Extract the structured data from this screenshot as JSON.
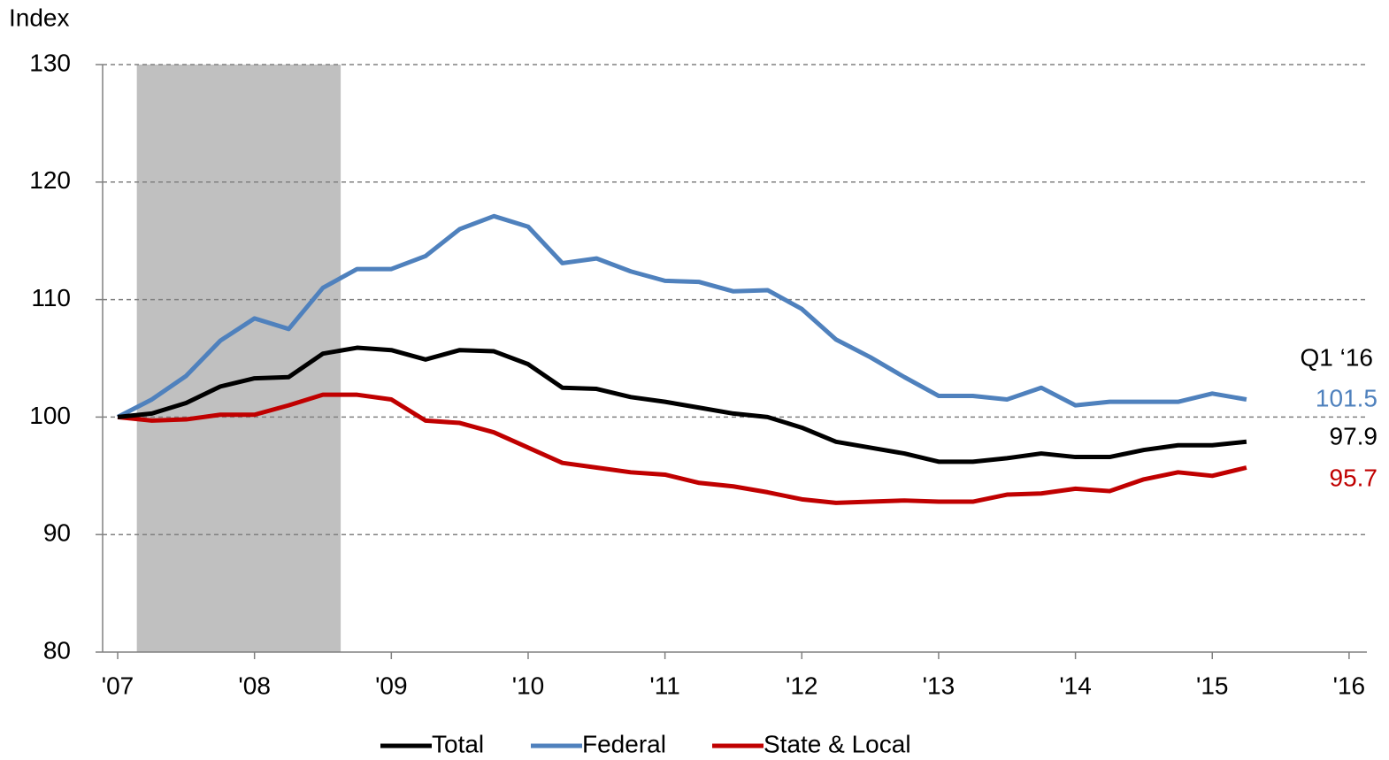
{
  "chart_data": {
    "type": "line",
    "ylabel": "Index",
    "annotation": "Q1 ‘16",
    "x": [
      2007,
      2007.25,
      2007.5,
      2007.75,
      2008,
      2008.25,
      2008.5,
      2008.75,
      2009,
      2009.25,
      2009.5,
      2009.75,
      2010,
      2010.25,
      2010.5,
      2010.75,
      2011,
      2011.25,
      2011.5,
      2011.75,
      2012,
      2012.25,
      2012.5,
      2012.75,
      2013,
      2013.25,
      2013.5,
      2013.75,
      2014,
      2014.25,
      2014.5,
      2014.75,
      2015,
      2015.25
    ],
    "series": [
      {
        "name": "Total",
        "color": "#000000",
        "values": [
          100,
          100.3,
          101.2,
          102.6,
          103.3,
          103.4,
          105.4,
          105.9,
          105.7,
          104.9,
          105.7,
          105.6,
          104.5,
          102.5,
          102.4,
          101.7,
          101.3,
          100.8,
          100.3,
          100.0,
          99.1,
          97.9,
          97.4,
          96.9,
          96.2,
          96.2,
          96.5,
          96.9,
          96.6,
          96.6,
          97.2,
          97.6,
          97.6,
          97.9
        ]
      },
      {
        "name": "Federal",
        "color": "#4f81bd",
        "values": [
          100,
          101.5,
          103.5,
          106.5,
          108.4,
          107.5,
          111.0,
          112.6,
          112.6,
          113.7,
          116.0,
          117.1,
          116.2,
          113.1,
          113.5,
          112.4,
          111.6,
          111.5,
          110.7,
          110.8,
          109.2,
          106.6,
          105.1,
          103.4,
          101.8,
          101.8,
          101.5,
          102.5,
          101.0,
          101.3,
          101.3,
          101.3,
          102.0,
          101.5
        ]
      },
      {
        "name": "State & Local",
        "color": "#c00000",
        "values": [
          100,
          99.7,
          99.8,
          100.2,
          100.2,
          101.0,
          101.9,
          101.9,
          101.5,
          99.7,
          99.5,
          98.7,
          97.4,
          96.1,
          95.7,
          95.3,
          95.1,
          94.4,
          94.1,
          93.6,
          93.0,
          92.7,
          92.8,
          92.9,
          92.8,
          92.8,
          93.4,
          93.5,
          93.9,
          93.7,
          94.7,
          95.3,
          95.0,
          95.7
        ]
      }
    ],
    "recession": [
      2007.14,
      2008.63
    ],
    "xlim": [
      2006.89,
      2016.13
    ],
    "xticks": [
      {
        "value": 2007,
        "label": "'07"
      },
      {
        "value": 2008,
        "label": "'08"
      },
      {
        "value": 2009,
        "label": "'09"
      },
      {
        "value": 2010,
        "label": "'10"
      },
      {
        "value": 2011,
        "label": "'11"
      },
      {
        "value": 2012,
        "label": "'12"
      },
      {
        "value": 2013,
        "label": "'13"
      },
      {
        "value": 2014,
        "label": "'14"
      },
      {
        "value": 2015,
        "label": "'15"
      },
      {
        "value": 2016,
        "label": "'16"
      }
    ],
    "ylim": [
      80,
      130
    ],
    "yticks": [
      80,
      90,
      100,
      110,
      120,
      130
    ],
    "grid": true
  }
}
